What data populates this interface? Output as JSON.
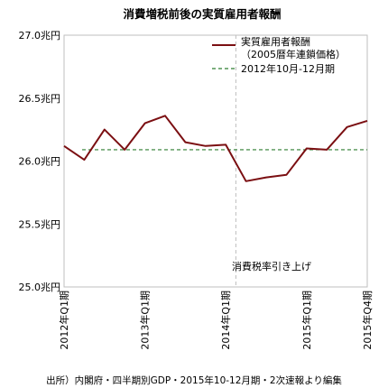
{
  "chart_data": {
    "type": "line",
    "title": "消費増税前後の実質雇用者報酬",
    "x": [
      "2012Q1",
      "2012Q2",
      "2012Q3",
      "2012Q4",
      "2013Q1",
      "2013Q2",
      "2013Q3",
      "2013Q4",
      "2014Q1",
      "2014Q2",
      "2014Q3",
      "2014Q4",
      "2015Q1",
      "2015Q2",
      "2015Q3",
      "2015Q4"
    ],
    "x_tick_labels": [
      {
        "label": "2012年Q1期",
        "index": 0
      },
      {
        "label": "2013年Q1期",
        "index": 4
      },
      {
        "label": "2014年Q1期",
        "index": 8
      },
      {
        "label": "2015年Q1期",
        "index": 12
      },
      {
        "label": "2015年Q4期",
        "index": 15
      }
    ],
    "y_tick_labels": [
      "25.0兆円",
      "25.5兆円",
      "26.0兆円",
      "26.5兆円",
      "27.0兆円"
    ],
    "y_ticks": [
      25.0,
      25.5,
      26.0,
      26.5,
      27.0
    ],
    "ylim": [
      25.0,
      27.0
    ],
    "series": [
      {
        "name": "実質雇用者報酬\n（2005暦年連鎖価格）",
        "color": "#7b0f12",
        "style": "solid",
        "values": [
          26.12,
          26.01,
          26.25,
          26.09,
          26.3,
          26.36,
          26.15,
          26.12,
          26.13,
          25.84,
          25.87,
          25.89,
          26.1,
          26.09,
          26.27,
          26.32
        ]
      },
      {
        "name": "2012年10月-12月期",
        "color": "#2e7d32",
        "style": "dashed",
        "value": 26.09
      }
    ],
    "annotations": [
      {
        "text": "消費税率引き上げ",
        "x_index": 8.5
      }
    ],
    "legend_position": "top-right",
    "grid": false,
    "source": "出所）内閣府・四半期別GDP・2015年10-12月期・2次速報より編集"
  }
}
